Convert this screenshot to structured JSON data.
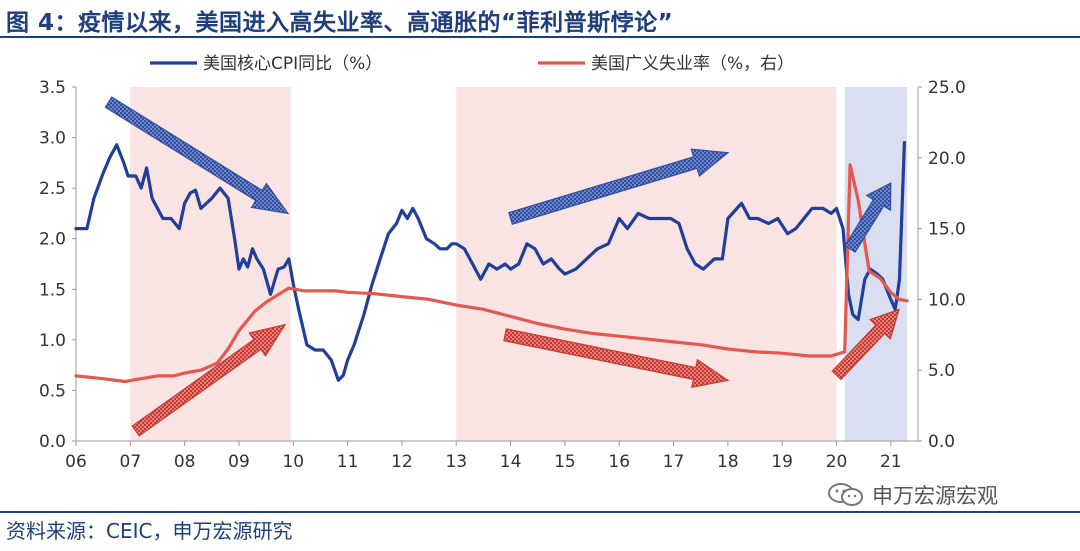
{
  "header": {
    "title": "图 4：疫情以来，美国进入高失业率、高通胀的“菲利普斯悖论”"
  },
  "footer": {
    "source": "资料来源：CEIC，申万宏源研究",
    "watermark": "申万宏源宏观"
  },
  "chart_data": {
    "type": "line",
    "title": "图 4：疫情以来，美国进入高失业率、高通胀的“菲利普斯悖论”",
    "x_tick_labels": [
      "06",
      "07",
      "08",
      "09",
      "10",
      "11",
      "12",
      "13",
      "14",
      "15",
      "16",
      "17",
      "18",
      "19",
      "20",
      "21"
    ],
    "x_range": [
      2006.0,
      2021.5
    ],
    "y_left": {
      "range": [
        0,
        3.5
      ],
      "ticks": [
        "0.0",
        "0.5",
        "1.0",
        "1.5",
        "2.0",
        "2.5",
        "3.0",
        "3.5"
      ]
    },
    "y_right": {
      "range": [
        0,
        25
      ],
      "ticks": [
        "0.0",
        "5.0",
        "10.0",
        "15.0",
        "20.0",
        "25.0"
      ]
    },
    "grid": false,
    "legend_position": "top",
    "series": [
      {
        "name": "美国核心CPI同比（%）",
        "axis": "left",
        "color": "#1f3f9a",
        "points": [
          [
            2006.0,
            2.1
          ],
          [
            2006.2,
            2.1
          ],
          [
            2006.33,
            2.4
          ],
          [
            2006.5,
            2.65
          ],
          [
            2006.62,
            2.8
          ],
          [
            2006.75,
            2.93
          ],
          [
            2006.88,
            2.75
          ],
          [
            2006.96,
            2.62
          ],
          [
            2007.1,
            2.62
          ],
          [
            2007.2,
            2.5
          ],
          [
            2007.3,
            2.7
          ],
          [
            2007.4,
            2.4
          ],
          [
            2007.5,
            2.3
          ],
          [
            2007.6,
            2.2
          ],
          [
            2007.75,
            2.2
          ],
          [
            2007.9,
            2.1
          ],
          [
            2008.0,
            2.35
          ],
          [
            2008.1,
            2.45
          ],
          [
            2008.2,
            2.48
          ],
          [
            2008.3,
            2.3
          ],
          [
            2008.4,
            2.35
          ],
          [
            2008.5,
            2.4
          ],
          [
            2008.65,
            2.5
          ],
          [
            2008.8,
            2.4
          ],
          [
            2008.92,
            2.0
          ],
          [
            2009.0,
            1.7
          ],
          [
            2009.08,
            1.8
          ],
          [
            2009.16,
            1.72
          ],
          [
            2009.25,
            1.9
          ],
          [
            2009.33,
            1.8
          ],
          [
            2009.45,
            1.7
          ],
          [
            2009.58,
            1.45
          ],
          [
            2009.72,
            1.7
          ],
          [
            2009.83,
            1.72
          ],
          [
            2009.92,
            1.8
          ],
          [
            2010.0,
            1.55
          ],
          [
            2010.1,
            1.3
          ],
          [
            2010.25,
            0.95
          ],
          [
            2010.4,
            0.9
          ],
          [
            2010.55,
            0.9
          ],
          [
            2010.7,
            0.8
          ],
          [
            2010.83,
            0.6
          ],
          [
            2010.92,
            0.65
          ],
          [
            2011.0,
            0.8
          ],
          [
            2011.12,
            0.95
          ],
          [
            2011.3,
            1.25
          ],
          [
            2011.45,
            1.55
          ],
          [
            2011.6,
            1.8
          ],
          [
            2011.75,
            2.05
          ],
          [
            2011.9,
            2.15
          ],
          [
            2012.0,
            2.28
          ],
          [
            2012.1,
            2.2
          ],
          [
            2012.2,
            2.3
          ],
          [
            2012.3,
            2.2
          ],
          [
            2012.45,
            2.0
          ],
          [
            2012.6,
            1.95
          ],
          [
            2012.7,
            1.9
          ],
          [
            2012.83,
            1.9
          ],
          [
            2012.92,
            1.95
          ],
          [
            2013.0,
            1.95
          ],
          [
            2013.15,
            1.9
          ],
          [
            2013.3,
            1.75
          ],
          [
            2013.45,
            1.6
          ],
          [
            2013.6,
            1.75
          ],
          [
            2013.75,
            1.7
          ],
          [
            2013.9,
            1.75
          ],
          [
            2014.0,
            1.7
          ],
          [
            2014.15,
            1.75
          ],
          [
            2014.3,
            1.95
          ],
          [
            2014.45,
            1.9
          ],
          [
            2014.6,
            1.75
          ],
          [
            2014.75,
            1.8
          ],
          [
            2014.9,
            1.7
          ],
          [
            2015.0,
            1.65
          ],
          [
            2015.2,
            1.7
          ],
          [
            2015.4,
            1.8
          ],
          [
            2015.6,
            1.9
          ],
          [
            2015.8,
            1.95
          ],
          [
            2016.0,
            2.2
          ],
          [
            2016.15,
            2.1
          ],
          [
            2016.35,
            2.25
          ],
          [
            2016.55,
            2.2
          ],
          [
            2016.75,
            2.2
          ],
          [
            2016.95,
            2.2
          ],
          [
            2017.1,
            2.15
          ],
          [
            2017.25,
            1.9
          ],
          [
            2017.4,
            1.75
          ],
          [
            2017.55,
            1.7
          ],
          [
            2017.75,
            1.8
          ],
          [
            2017.9,
            1.8
          ],
          [
            2018.0,
            2.2
          ],
          [
            2018.25,
            2.35
          ],
          [
            2018.4,
            2.2
          ],
          [
            2018.55,
            2.2
          ],
          [
            2018.75,
            2.15
          ],
          [
            2018.92,
            2.2
          ],
          [
            2019.1,
            2.05
          ],
          [
            2019.25,
            2.1
          ],
          [
            2019.4,
            2.2
          ],
          [
            2019.55,
            2.3
          ],
          [
            2019.75,
            2.3
          ],
          [
            2019.9,
            2.25
          ],
          [
            2020.0,
            2.3
          ],
          [
            2020.12,
            2.1
          ],
          [
            2020.22,
            1.45
          ],
          [
            2020.3,
            1.25
          ],
          [
            2020.4,
            1.2
          ],
          [
            2020.52,
            1.6
          ],
          [
            2020.62,
            1.7
          ],
          [
            2020.75,
            1.65
          ],
          [
            2020.85,
            1.6
          ],
          [
            2021.0,
            1.4
          ],
          [
            2021.08,
            1.3
          ],
          [
            2021.16,
            1.6
          ],
          [
            2021.25,
            2.95
          ]
        ]
      },
      {
        "name": "美国广义失业率（%，右）",
        "axis": "right",
        "color": "#e4584f",
        "points": [
          [
            2006.0,
            4.6
          ],
          [
            2006.5,
            4.4
          ],
          [
            2006.9,
            4.2
          ],
          [
            2007.2,
            4.4
          ],
          [
            2007.5,
            4.6
          ],
          [
            2007.8,
            4.6
          ],
          [
            2008.0,
            4.8
          ],
          [
            2008.3,
            5.0
          ],
          [
            2008.6,
            5.5
          ],
          [
            2008.8,
            6.5
          ],
          [
            2009.0,
            7.8
          ],
          [
            2009.3,
            9.2
          ],
          [
            2009.5,
            9.8
          ],
          [
            2009.75,
            10.4
          ],
          [
            2009.92,
            10.8
          ],
          [
            2010.2,
            10.6
          ],
          [
            2010.5,
            10.6
          ],
          [
            2010.8,
            10.6
          ],
          [
            2011.0,
            10.5
          ],
          [
            2011.5,
            10.4
          ],
          [
            2012.0,
            10.2
          ],
          [
            2012.5,
            10.0
          ],
          [
            2013.0,
            9.6
          ],
          [
            2013.5,
            9.3
          ],
          [
            2014.0,
            8.8
          ],
          [
            2014.5,
            8.3
          ],
          [
            2015.0,
            7.9
          ],
          [
            2015.5,
            7.6
          ],
          [
            2016.0,
            7.4
          ],
          [
            2016.5,
            7.2
          ],
          [
            2017.0,
            7.0
          ],
          [
            2017.5,
            6.8
          ],
          [
            2018.0,
            6.5
          ],
          [
            2018.5,
            6.3
          ],
          [
            2019.0,
            6.2
          ],
          [
            2019.5,
            6.0
          ],
          [
            2019.9,
            6.0
          ],
          [
            2020.15,
            6.3
          ],
          [
            2020.25,
            19.5
          ],
          [
            2020.4,
            17.0
          ],
          [
            2020.6,
            12.0
          ],
          [
            2020.8,
            11.5
          ],
          [
            2021.0,
            10.5
          ],
          [
            2021.15,
            10.0
          ],
          [
            2021.3,
            9.9
          ]
        ]
      }
    ],
    "shaded_regions": [
      {
        "x_range": [
          2007.0,
          2009.95
        ],
        "color": "#fae3e3"
      },
      {
        "x_range": [
          2013.0,
          2020.0
        ],
        "color": "#fae3e3"
      },
      {
        "x_range": [
          2020.15,
          2021.3
        ],
        "color": "#d9dff0"
      }
    ],
    "annotation_arrows": [
      {
        "color": "blue",
        "from": [
          2006.6,
          3.35
        ],
        "to": [
          2009.9,
          2.25
        ],
        "axis": "left"
      },
      {
        "color": "blue",
        "from": [
          2014.0,
          2.2
        ],
        "to": [
          2018.0,
          2.85
        ],
        "axis": "left"
      },
      {
        "color": "blue",
        "from": [
          2020.25,
          1.9
        ],
        "to": [
          2021.0,
          2.55
        ],
        "axis": "left"
      },
      {
        "color": "red",
        "from": [
          2007.1,
          0.1
        ],
        "to": [
          2009.85,
          1.15
        ],
        "axis": "left"
      },
      {
        "color": "red",
        "from": [
          2013.9,
          1.05
        ],
        "to": [
          2018.0,
          0.6
        ],
        "axis": "left"
      },
      {
        "color": "red",
        "from": [
          2020.0,
          0.65
        ],
        "to": [
          2021.15,
          1.3
        ],
        "axis": "left"
      }
    ]
  }
}
